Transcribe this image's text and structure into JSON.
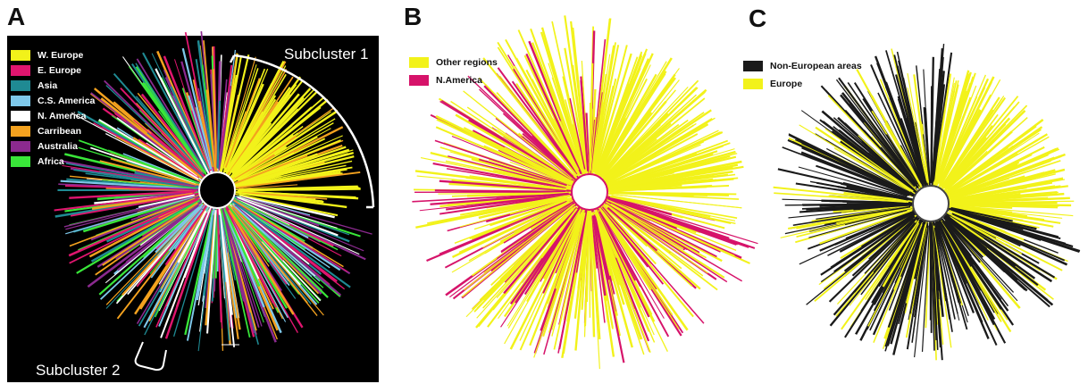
{
  "panels": [
    {
      "label": "A",
      "legend": [
        {
          "label": "W. Europe",
          "color": "#f2f21a"
        },
        {
          "label": "E. Europe",
          "color": "#e0156f"
        },
        {
          "label": "Asia",
          "color": "#1f8a93"
        },
        {
          "label": "C.S. America",
          "color": "#7ec8ea"
        },
        {
          "label": "N. America",
          "color": "#ffffff"
        },
        {
          "label": "Carribean",
          "color": "#f4a21f"
        },
        {
          "label": "Australia",
          "color": "#8b2a8f"
        },
        {
          "label": "Africa",
          "color": "#39e639"
        }
      ],
      "annotations": [
        "Subcluster 1",
        "Subcluster 2"
      ]
    },
    {
      "label": "B",
      "legend": [
        {
          "label": "Other regions",
          "color": "#f2f21a"
        },
        {
          "label": "N.America",
          "color": "#d6136a"
        }
      ]
    },
    {
      "label": "C",
      "legend": [
        {
          "label": "Non-European areas",
          "color": "#1a1a1a"
        },
        {
          "label": "Europe",
          "color": "#f2f21a"
        }
      ]
    }
  ]
}
